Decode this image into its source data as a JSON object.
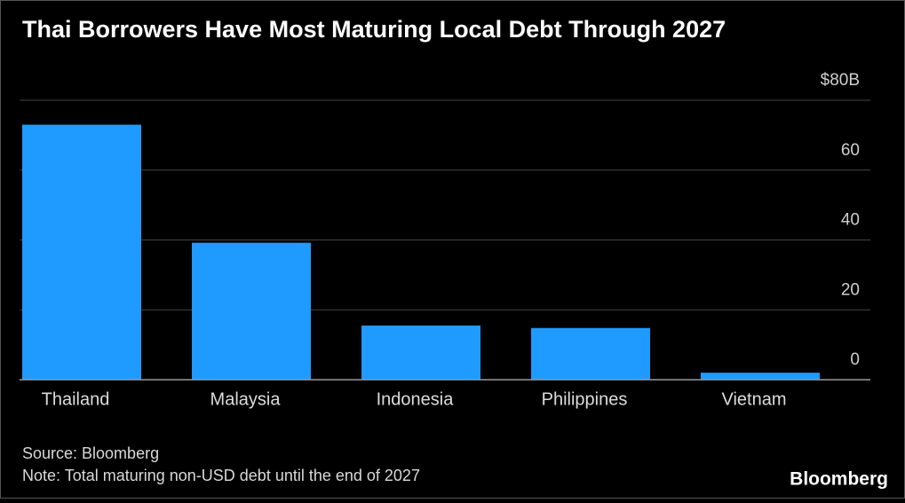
{
  "chart_data": {
    "type": "bar",
    "title": "Thai Borrowers Have Most Maturing Local Debt Through 2027",
    "categories": [
      "Thailand",
      "Malaysia",
      "Indonesia",
      "Philippines",
      "Vietnam"
    ],
    "values": [
      73,
      39.2,
      15.5,
      14.8,
      2
    ],
    "color": "#1f9bff",
    "ylim": [
      0,
      80
    ],
    "yticks": [
      0,
      20,
      40,
      60,
      {
        "value": 80,
        "label": "$80B"
      }
    ],
    "grid": true,
    "source": "Source: Bloomberg",
    "note": "Note: Total maturing non-USD debt until the end of 2027",
    "brand": "Bloomberg"
  }
}
